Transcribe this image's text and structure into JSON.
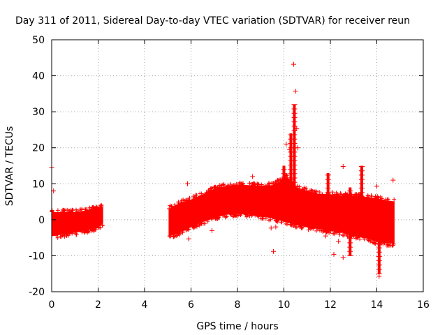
{
  "chart_data": {
    "type": "scatter",
    "title": "Day 311 of 2011, Sidereal Day-to-day VTEC variation (SDTVAR) for receiver reun",
    "xlabel": "GPS time / hours",
    "ylabel": "SDTVAR / TECUs",
    "xlim": [
      0,
      16
    ],
    "ylim": [
      -20,
      50
    ],
    "xticks": [
      0,
      2,
      4,
      6,
      8,
      10,
      12,
      14,
      16
    ],
    "yticks": [
      -20,
      -10,
      0,
      10,
      20,
      30,
      40,
      50
    ],
    "grid": true,
    "marker": "+",
    "color": "#ff0000",
    "series": [
      {
        "name": "SDTVAR",
        "band_segments": [
          {
            "x": [
              0.0,
              0.5,
              1.0,
              1.5,
              2.0,
              2.2
            ],
            "upper": [
              2.0,
              2.0,
              2.0,
              2.5,
              3.5,
              3.5
            ],
            "lower": [
              -4.5,
              -4.0,
              -3.5,
              -3.0,
              -2.0,
              -1.0
            ]
          },
          {
            "x": [
              5.05,
              5.5,
              6.0,
              6.5,
              7.0,
              7.5,
              8.0,
              8.5,
              9.0,
              9.5,
              9.8,
              10.0,
              10.3,
              10.6,
              11.0,
              11.5,
              12.0,
              12.5,
              13.0,
              13.5,
              14.0,
              14.4,
              14.75
            ],
            "upper": [
              3.0,
              4.5,
              5.5,
              7.0,
              8.5,
              9.2,
              9.7,
              9.5,
              9.4,
              9.5,
              10.5,
              12.0,
              11.0,
              8.5,
              8.0,
              7.0,
              7.0,
              6.5,
              6.5,
              6.3,
              5.8,
              5.3,
              5.0
            ],
            "lower": [
              -4.5,
              -3.5,
              -2.0,
              -0.5,
              0.5,
              1.5,
              1.8,
              1.5,
              1.0,
              0.5,
              0.0,
              -0.5,
              -1.0,
              -1.5,
              -2.0,
              -2.5,
              -3.0,
              -3.5,
              -4.5,
              -5.0,
              -6.0,
              -6.5,
              -6.5
            ]
          }
        ],
        "spikes": [
          {
            "x": 10.0,
            "y0": 8,
            "y1": 15
          },
          {
            "x": 10.3,
            "y0": 8,
            "y1": 24
          },
          {
            "x": 10.45,
            "y0": 8,
            "y1": 32
          },
          {
            "x": 11.9,
            "y0": 4,
            "y1": 13
          },
          {
            "x": 12.85,
            "y0": -10,
            "y1": 9
          },
          {
            "x": 13.35,
            "y0": 4,
            "y1": 15
          },
          {
            "x": 14.1,
            "y0": -15,
            "y1": -5
          }
        ],
        "outliers": [
          {
            "x": 0.0,
            "y": 14.5
          },
          {
            "x": 0.08,
            "y": 8.0
          },
          {
            "x": 5.85,
            "y": 10.0
          },
          {
            "x": 5.9,
            "y": -5.3
          },
          {
            "x": 6.6,
            "y": -1.0
          },
          {
            "x": 6.9,
            "y": -3.0
          },
          {
            "x": 8.65,
            "y": 12.0
          },
          {
            "x": 9.45,
            "y": -2.3
          },
          {
            "x": 9.55,
            "y": -8.8
          },
          {
            "x": 9.65,
            "y": -2.0
          },
          {
            "x": 10.1,
            "y": 21.0
          },
          {
            "x": 10.25,
            "y": 19.5
          },
          {
            "x": 10.42,
            "y": 43.2
          },
          {
            "x": 10.5,
            "y": 35.7
          },
          {
            "x": 10.55,
            "y": 25.3
          },
          {
            "x": 10.6,
            "y": 20.0
          },
          {
            "x": 11.8,
            "y": -4.5
          },
          {
            "x": 12.15,
            "y": -9.6
          },
          {
            "x": 12.35,
            "y": -6.0
          },
          {
            "x": 12.55,
            "y": 14.8
          },
          {
            "x": 12.55,
            "y": -10.5
          },
          {
            "x": 13.15,
            "y": -5.0
          },
          {
            "x": 13.8,
            "y": -2.0
          },
          {
            "x": 14.1,
            "y": -15.7
          },
          {
            "x": 14.0,
            "y": 9.3
          },
          {
            "x": 14.7,
            "y": 11.0
          }
        ]
      }
    ]
  }
}
